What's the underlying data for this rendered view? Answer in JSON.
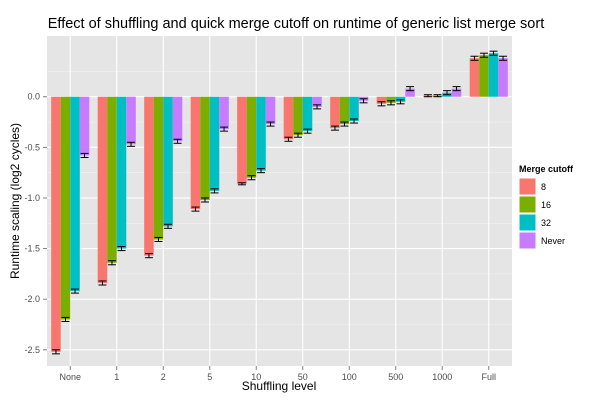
{
  "chart_data": {
    "type": "bar",
    "title": "Effect of shuffling and quick merge cutoff on runtime of generic list merge sort",
    "xlabel": "Shuffling level",
    "ylabel": "Runtime scaling (log2 cycles)",
    "categories": [
      "None",
      "1",
      "2",
      "5",
      "10",
      "50",
      "100",
      "500",
      "1000",
      "Full"
    ],
    "ylim": [
      -2.66,
      0.6
    ],
    "yticks": [
      0.0,
      -0.5,
      -1.0,
      -1.5,
      -2.0,
      -2.5
    ],
    "ytick_labels": [
      "0.0",
      "-0.5",
      "-1.0",
      "-1.5",
      "-2.0",
      "-2.5"
    ],
    "grid": true,
    "legend": {
      "title": "Merge cutoff",
      "position": "right"
    },
    "series": [
      {
        "name": "8",
        "color": "#f8766d",
        "values": [
          -2.52,
          -1.84,
          -1.57,
          -1.11,
          -0.86,
          -0.42,
          -0.31,
          -0.07,
          0.01,
          0.38
        ],
        "errors": [
          0.02,
          0.02,
          0.02,
          0.02,
          0.01,
          0.02,
          0.02,
          0.02,
          0.01,
          0.02
        ]
      },
      {
        "name": "16",
        "color": "#7cae00",
        "values": [
          -2.2,
          -1.64,
          -1.41,
          -1.02,
          -0.8,
          -0.38,
          -0.27,
          -0.06,
          0.01,
          0.41
        ],
        "errors": [
          0.02,
          0.02,
          0.02,
          0.02,
          0.02,
          0.02,
          0.02,
          0.02,
          0.01,
          0.02
        ]
      },
      {
        "name": "32",
        "color": "#00bfc4",
        "values": [
          -1.92,
          -1.5,
          -1.28,
          -0.93,
          -0.73,
          -0.34,
          -0.24,
          -0.05,
          0.04,
          0.43
        ],
        "errors": [
          0.02,
          0.02,
          0.02,
          0.02,
          0.02,
          0.02,
          0.02,
          0.02,
          0.02,
          0.02
        ]
      },
      {
        "name": "Never",
        "color": "#c77cff",
        "values": [
          -0.58,
          -0.47,
          -0.44,
          -0.32,
          -0.27,
          -0.1,
          -0.04,
          0.08,
          0.08,
          0.38
        ],
        "errors": [
          0.02,
          0.02,
          0.02,
          0.02,
          0.02,
          0.02,
          0.02,
          0.02,
          0.02,
          0.02
        ]
      }
    ]
  }
}
